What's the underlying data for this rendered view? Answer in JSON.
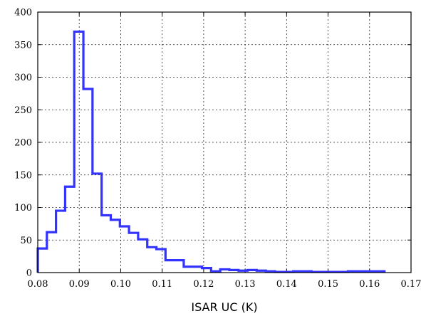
{
  "chart_data": {
    "type": "histogram",
    "title": "",
    "xlabel": "ISAR UC (K)",
    "ylabel": "",
    "xlim": [
      0.08,
      0.17
    ],
    "ylim": [
      0,
      400
    ],
    "grid": true,
    "legend": "none",
    "line_color": "#3333ff",
    "x_ticks": [
      0.08,
      0.09,
      0.1,
      0.11,
      0.12,
      0.13,
      0.14,
      0.15,
      0.16,
      0.17
    ],
    "x_tick_labels": [
      "0.08",
      "0.09",
      "0.10",
      "0.11",
      "0.12",
      "0.13",
      "0.14",
      "0.15",
      "0.16",
      "0.17"
    ],
    "y_ticks": [
      0,
      50,
      100,
      150,
      200,
      250,
      300,
      350,
      400
    ],
    "y_tick_labels": [
      "0",
      "50",
      "100",
      "150",
      "200",
      "250",
      "300",
      "350",
      "400"
    ],
    "bin_edges": [
      0.08,
      0.0822,
      0.0844,
      0.0866,
      0.0888,
      0.091,
      0.0932,
      0.0954,
      0.0976,
      0.0998,
      0.102,
      0.1042,
      0.1064,
      0.1086,
      0.1108,
      0.113,
      0.1152,
      0.1174,
      0.1196,
      0.1218,
      0.124,
      0.1262,
      0.1284,
      0.1306,
      0.1328,
      0.135,
      0.1372,
      0.1394,
      0.1416,
      0.1438,
      0.146,
      0.1482,
      0.1504,
      0.1526,
      0.1548,
      0.157,
      0.1592,
      0.1614,
      0.1636
    ],
    "counts": [
      37,
      62,
      95,
      132,
      370,
      282,
      152,
      88,
      81,
      71,
      61,
      51,
      39,
      36,
      19,
      19,
      9,
      9,
      7,
      2,
      5,
      4,
      3,
      4,
      3,
      2,
      1,
      1,
      2,
      2,
      1,
      1,
      1,
      1,
      2,
      2,
      2,
      2
    ]
  }
}
